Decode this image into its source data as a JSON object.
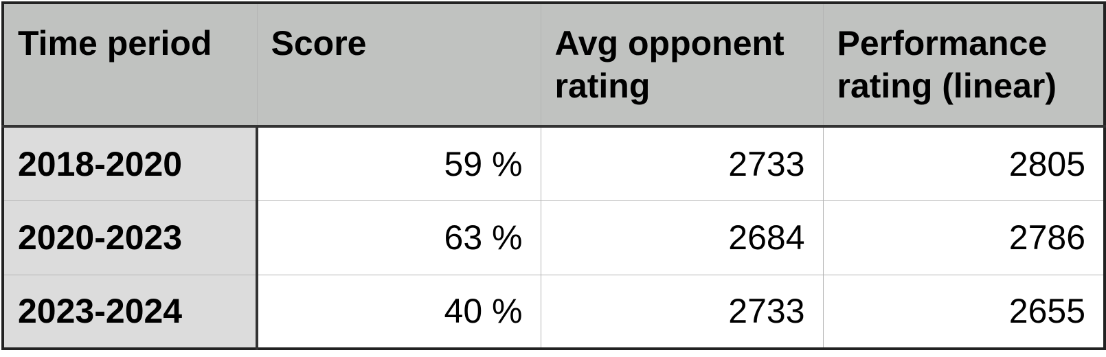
{
  "table": {
    "header": [
      "Time period",
      "Score",
      "Avg opponent rating",
      "Performance rating (linear)"
    ],
    "rows": [
      [
        "2018-2020",
        "59 %",
        "2733",
        "2805"
      ],
      [
        "2020-2023",
        "63 %",
        "2684",
        "2786"
      ],
      [
        "2023-2024",
        "40 %",
        "2733",
        "2655"
      ]
    ]
  }
}
